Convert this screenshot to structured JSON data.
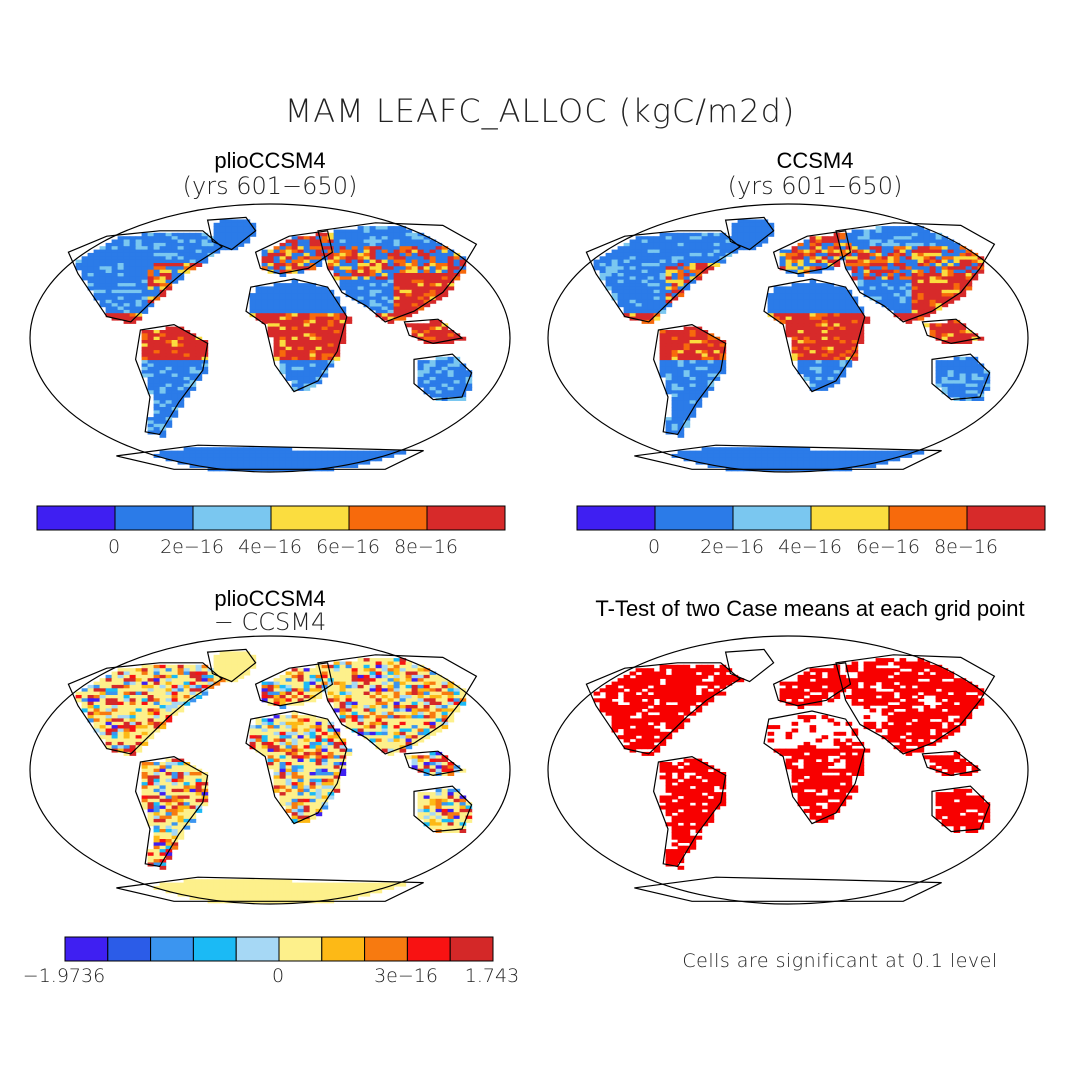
{
  "figure": {
    "title": "MAM LEAFC_ALLOC (kgC/m2d)"
  },
  "panels": {
    "top_left": {
      "title": "plioCCSM4",
      "subtitle": "(yrs 601−650)"
    },
    "top_right": {
      "title": "CCSM4",
      "subtitle": "(yrs 601−650)"
    },
    "bottom_left": {
      "title": "plioCCSM4",
      "subtitle": "− CCSM4"
    },
    "bottom_right": {
      "title": "T-Test of two Case means at each grid point",
      "note": "Cells are significant at 0.1 level"
    }
  },
  "colorbars": {
    "mean": {
      "colors": [
        "#3f1ff2",
        "#2b7be8",
        "#7ac7f0",
        "#fbdd3f",
        "#f76a0c",
        "#d72a2a"
      ],
      "labels": [
        "0",
        "2e−16",
        "4e−16",
        "6e−16",
        "8e−16"
      ]
    },
    "diff": {
      "colors": [
        "#3f1ff2",
        "#2b5ce8",
        "#3b95f0",
        "#1bbaf5",
        "#a6d8f5",
        "#fdf08b",
        "#fdb916",
        "#f77a10",
        "#f81212",
        "#d42828"
      ],
      "labels": [
        "−1.9736",
        "0",
        "3e−16",
        "1.743"
      ]
    }
  },
  "colors": {
    "ocean": "#ffffff",
    "outline": "#000000",
    "significant": "#f80000"
  }
}
